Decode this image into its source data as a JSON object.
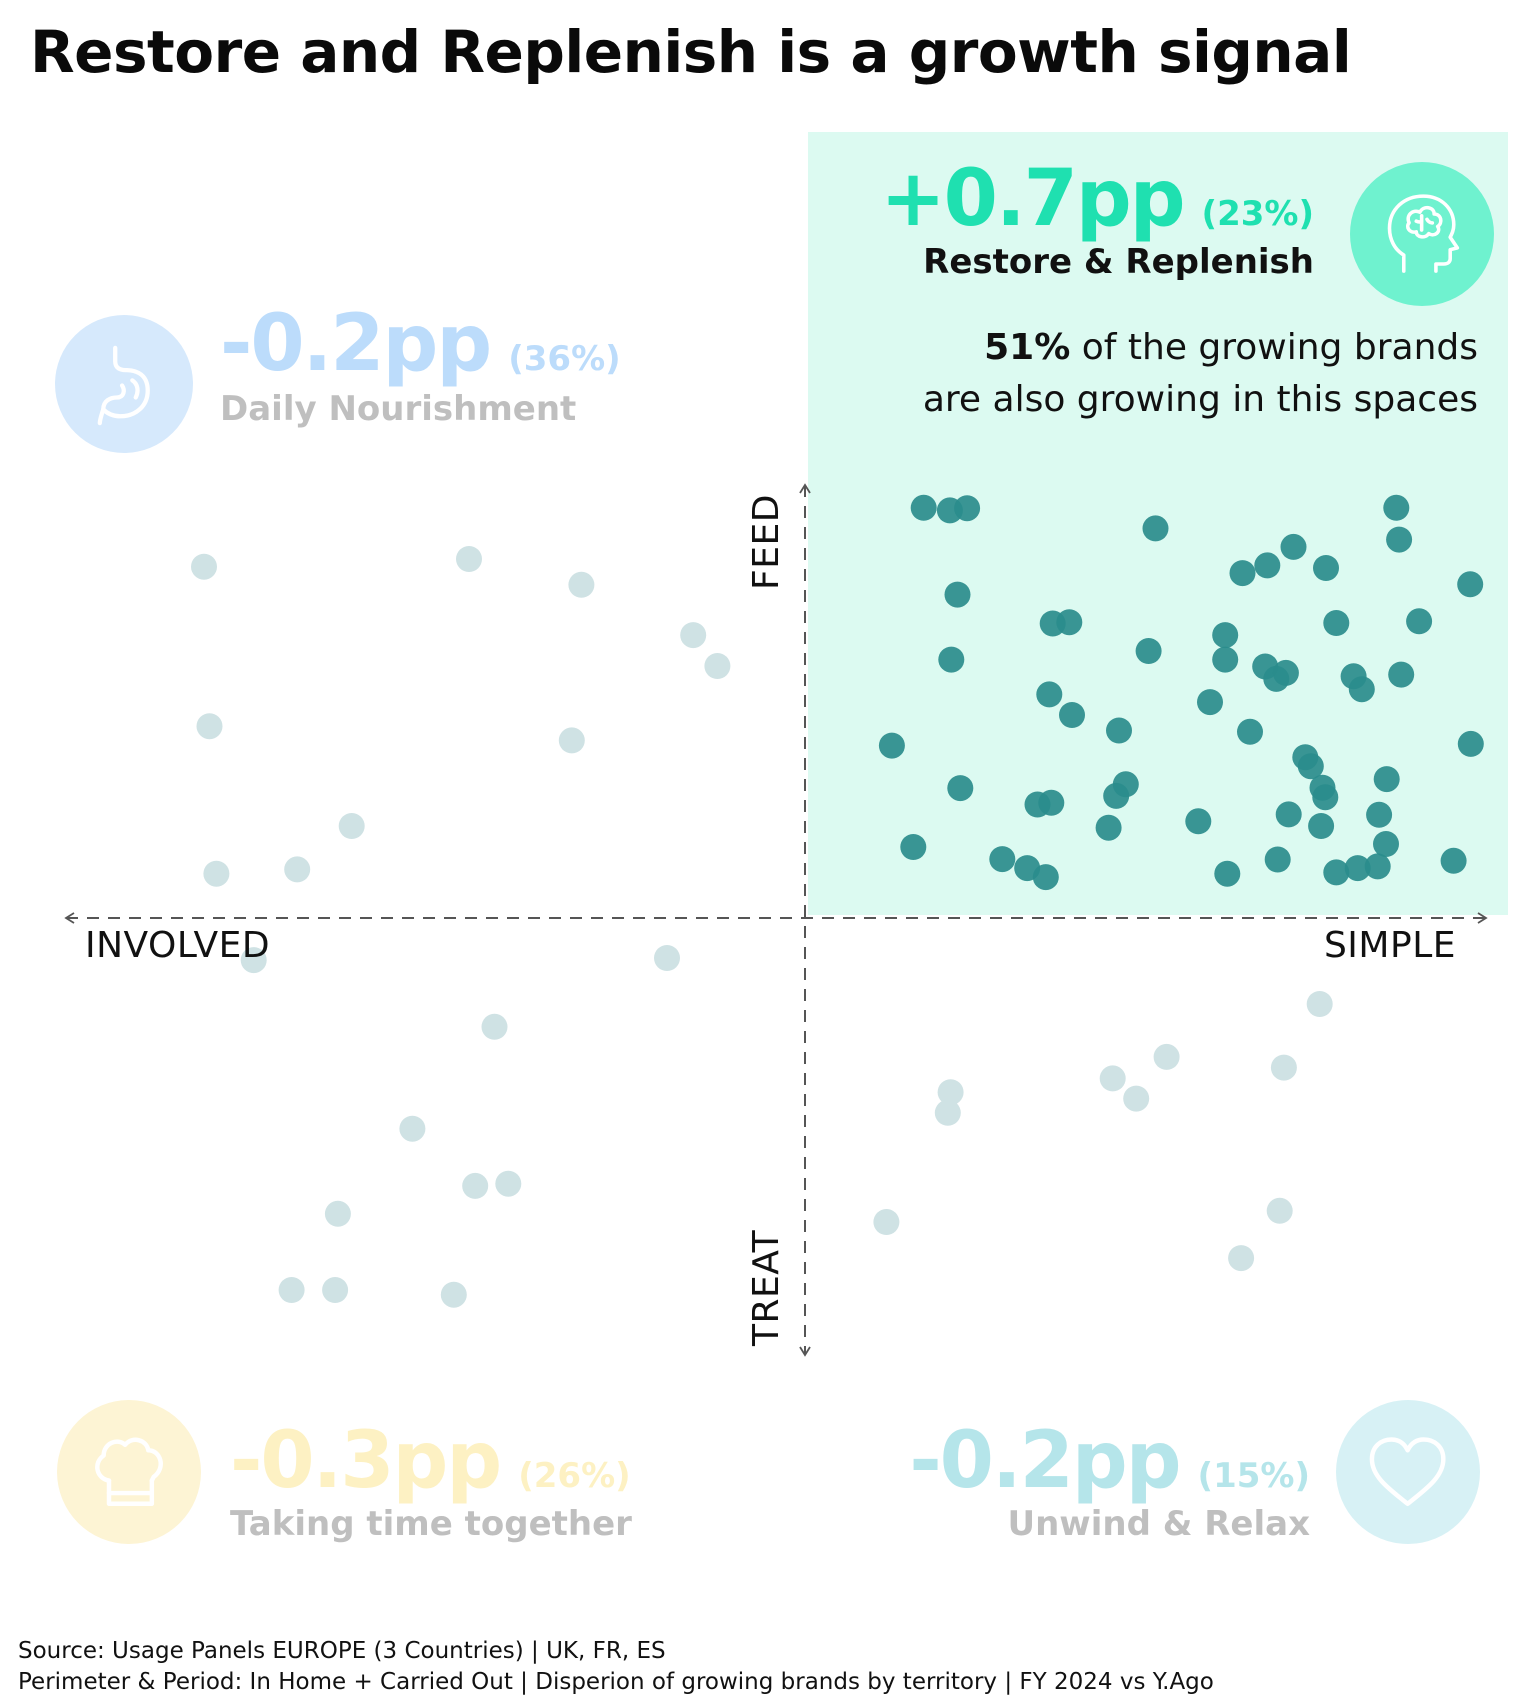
{
  "title": "Restore and Replenish is a growth signal",
  "colors": {
    "highlight_bg": "#dcfaf1",
    "highlight_accent": "#1fe0b0",
    "highlight_icon": "#6ff2cf",
    "daily_accent": "#bcdcfb",
    "daily_icon": "#d6e9fc",
    "together_accent": "#fdf1c3",
    "together_icon": "#fdf4d4",
    "unwind_accent": "#b5e5ea",
    "unwind_icon": "#d7f1f5",
    "point_active": "#2a8c8c",
    "point_faded": "#cfe2e4",
    "muted_text": "#bfbfbf"
  },
  "quadrants": {
    "restore": {
      "pp": "+0.7pp",
      "share": "(23%)",
      "name": "Restore & Replenish",
      "icon": "brain-head-icon"
    },
    "daily": {
      "pp": "-0.2pp",
      "share": "(36%)",
      "name": "Daily Nourishment",
      "icon": "stomach-icon"
    },
    "together": {
      "pp": "-0.3pp",
      "share": "(26%)",
      "name": "Taking time together",
      "icon": "chef-hat-icon"
    },
    "unwind": {
      "pp": "-0.2pp",
      "share": "(15%)",
      "name": "Unwind & Relax",
      "icon": "heart-icon"
    }
  },
  "note": {
    "bold": "51%",
    "rest": " of the growing brands",
    "line2": "are also growing in this spaces"
  },
  "source": {
    "line1": "Source: Usage Panels EUROPE (3 Countries) | UK, FR, ES",
    "line2": "Perimeter & Period: In Home + Carried Out | Disperion of growing brands by territory  | FY 2024 vs Y.Ago"
  },
  "chart_data": {
    "type": "scatter",
    "title": "Restore and Replenish is a growth signal",
    "xlabel_left": "INVOLVED",
    "xlabel_right": "SIMPLE",
    "ylabel_top": "FEED",
    "ylabel_bottom": "TREAT",
    "xlim": [
      -1,
      1
    ],
    "ylim": [
      -1,
      1
    ],
    "grid": false,
    "highlight_quadrant": "top-right",
    "series": [
      {
        "quadrant": "Restore & Replenish",
        "highlight": true,
        "points": [
          [
            0.172,
            0.954
          ],
          [
            0.21,
            0.948
          ],
          [
            0.235,
            0.953
          ],
          [
            0.508,
            0.906
          ],
          [
            0.857,
            0.954
          ],
          [
            0.861,
            0.88
          ],
          [
            0.708,
            0.863
          ],
          [
            0.67,
            0.82
          ],
          [
            0.634,
            0.802
          ],
          [
            0.755,
            0.814
          ],
          [
            0.964,
            0.776
          ],
          [
            0.221,
            0.752
          ],
          [
            0.359,
            0.685
          ],
          [
            0.383,
            0.688
          ],
          [
            0.498,
            0.621
          ],
          [
            0.609,
            0.658
          ],
          [
            0.77,
            0.686
          ],
          [
            0.89,
            0.69
          ],
          [
            0.212,
            0.601
          ],
          [
            0.609,
            0.601
          ],
          [
            0.667,
            0.585
          ],
          [
            0.683,
            0.556
          ],
          [
            0.697,
            0.57
          ],
          [
            0.795,
            0.562
          ],
          [
            0.864,
            0.566
          ],
          [
            0.807,
            0.532
          ],
          [
            0.354,
            0.52
          ],
          [
            0.387,
            0.472
          ],
          [
            0.587,
            0.502
          ],
          [
            0.455,
            0.436
          ],
          [
            0.645,
            0.433
          ],
          [
            0.126,
            0.401
          ],
          [
            0.965,
            0.405
          ],
          [
            0.733,
            0.353
          ],
          [
            0.725,
            0.374
          ],
          [
            0.225,
            0.302
          ],
          [
            0.465,
            0.311
          ],
          [
            0.75,
            0.303
          ],
          [
            0.754,
            0.281
          ],
          [
            0.843,
            0.323
          ],
          [
            0.337,
            0.264
          ],
          [
            0.357,
            0.268
          ],
          [
            0.451,
            0.284
          ],
          [
            0.57,
            0.225
          ],
          [
            0.44,
            0.21
          ],
          [
            0.701,
            0.241
          ],
          [
            0.748,
            0.214
          ],
          [
            0.832,
            0.24
          ],
          [
            0.157,
            0.165
          ],
          [
            0.286,
            0.137
          ],
          [
            0.322,
            0.116
          ],
          [
            0.349,
            0.095
          ],
          [
            0.612,
            0.103
          ],
          [
            0.685,
            0.136
          ],
          [
            0.77,
            0.106
          ],
          [
            0.801,
            0.116
          ],
          [
            0.83,
            0.12
          ],
          [
            0.842,
            0.172
          ],
          [
            0.94,
            0.133
          ]
        ]
      },
      {
        "quadrant": "Daily Nourishment",
        "highlight": false,
        "points": [
          [
            -0.871,
            0.817
          ],
          [
            -0.487,
            0.835
          ],
          [
            -0.324,
            0.775
          ],
          [
            -0.162,
            0.658
          ],
          [
            -0.127,
            0.586
          ],
          [
            -0.863,
            0.446
          ],
          [
            -0.338,
            0.413
          ],
          [
            -0.657,
            0.214
          ],
          [
            -0.853,
            0.103
          ],
          [
            -0.736,
            0.113
          ]
        ]
      },
      {
        "quadrant": "Taking time together",
        "highlight": false,
        "points": [
          [
            -0.799,
            -0.098
          ],
          [
            -0.2,
            -0.093
          ],
          [
            -0.45,
            -0.253
          ],
          [
            -0.569,
            -0.49
          ],
          [
            -0.478,
            -0.623
          ],
          [
            -0.43,
            -0.618
          ],
          [
            -0.677,
            -0.688
          ],
          [
            -0.744,
            -0.865
          ],
          [
            -0.681,
            -0.865
          ],
          [
            -0.509,
            -0.876
          ]
        ]
      },
      {
        "quadrant": "Unwind & Relax",
        "highlight": false,
        "points": [
          [
            0.746,
            -0.2
          ],
          [
            0.524,
            -0.323
          ],
          [
            0.211,
            -0.405
          ],
          [
            0.207,
            -0.453
          ],
          [
            0.446,
            -0.373
          ],
          [
            0.48,
            -0.42
          ],
          [
            0.694,
            -0.348
          ],
          [
            0.118,
            -0.707
          ],
          [
            0.688,
            -0.681
          ],
          [
            0.632,
            -0.791
          ]
        ]
      }
    ]
  }
}
